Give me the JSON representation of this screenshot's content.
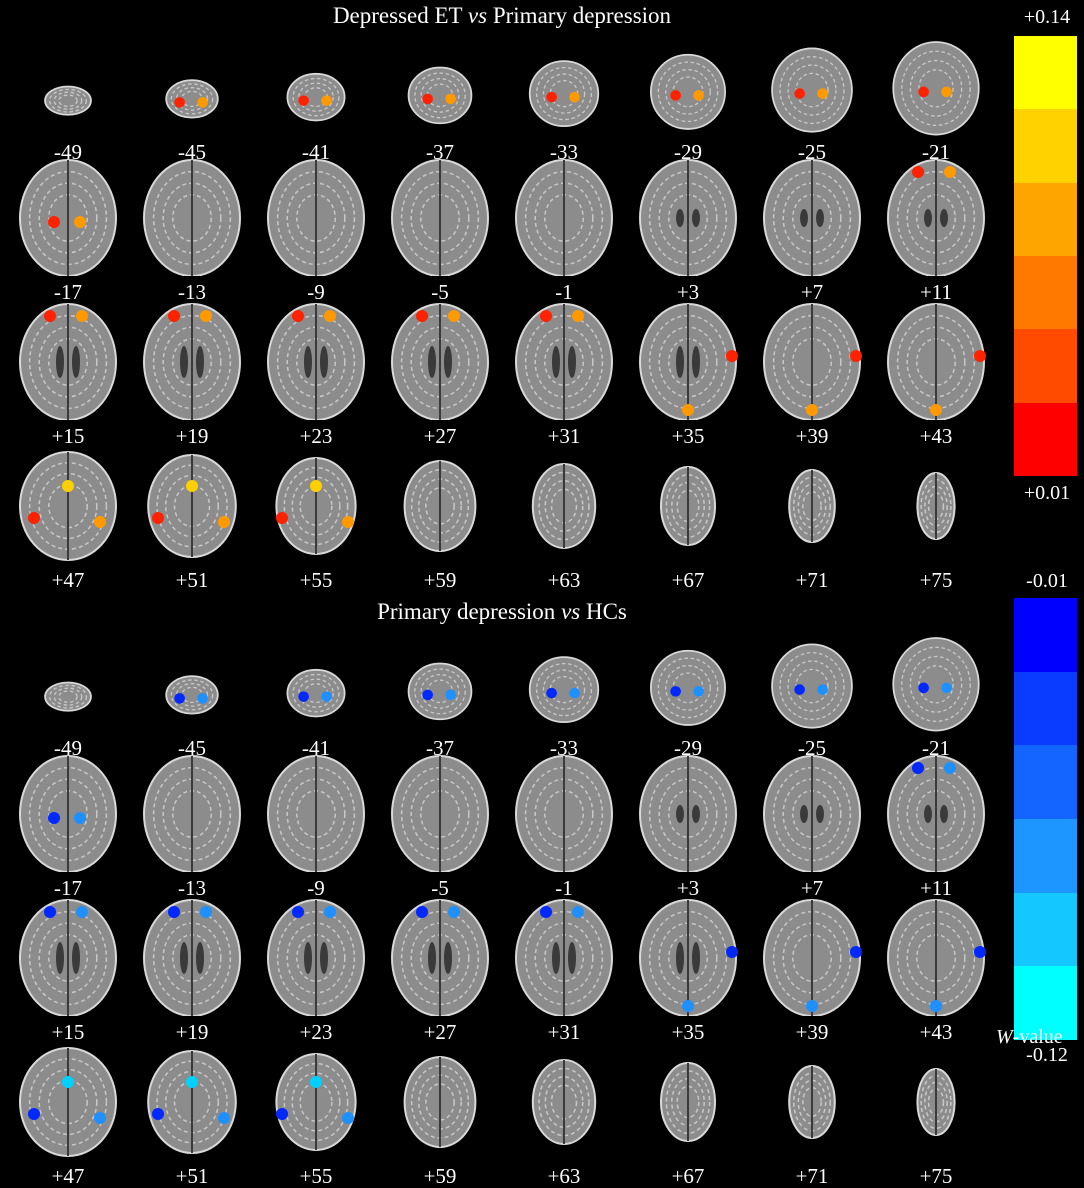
{
  "panels": [
    {
      "title_pre": "Depressed ET ",
      "title_vs": "vs",
      "title_post": " Primary depression",
      "effect": "warm"
    },
    {
      "title_pre": "Primary depression ",
      "title_vs": "vs",
      "title_post": " HCs",
      "effect": "cool"
    }
  ],
  "slice_labels": [
    "-49",
    "-45",
    "-41",
    "-37",
    "-33",
    "-29",
    "-25",
    "-21",
    "-17",
    "-13",
    "-9",
    "-5",
    "-1",
    "+3",
    "+7",
    "+11",
    "+15",
    "+19",
    "+23",
    "+27",
    "+31",
    "+35",
    "+39",
    "+43",
    "+47",
    "+51",
    "+55",
    "+59",
    "+63",
    "+67",
    "+71",
    "+75"
  ],
  "colorbars": {
    "warm": {
      "max_label": "+0.14",
      "min_label": "+0.01",
      "colors": [
        "#ffff00",
        "#ffd200",
        "#ffa500",
        "#ff7800",
        "#ff4b00",
        "#ff0000"
      ]
    },
    "cool": {
      "max_label": "-0.01",
      "min_label": "-0.12",
      "colors": [
        "#0000ff",
        "#0a3cff",
        "#1464ff",
        "#1e96ff",
        "#14c8ff",
        "#00ffff"
      ]
    }
  },
  "colorbar_unit_italic": "W",
  "colorbar_unit_rest": "-value"
}
